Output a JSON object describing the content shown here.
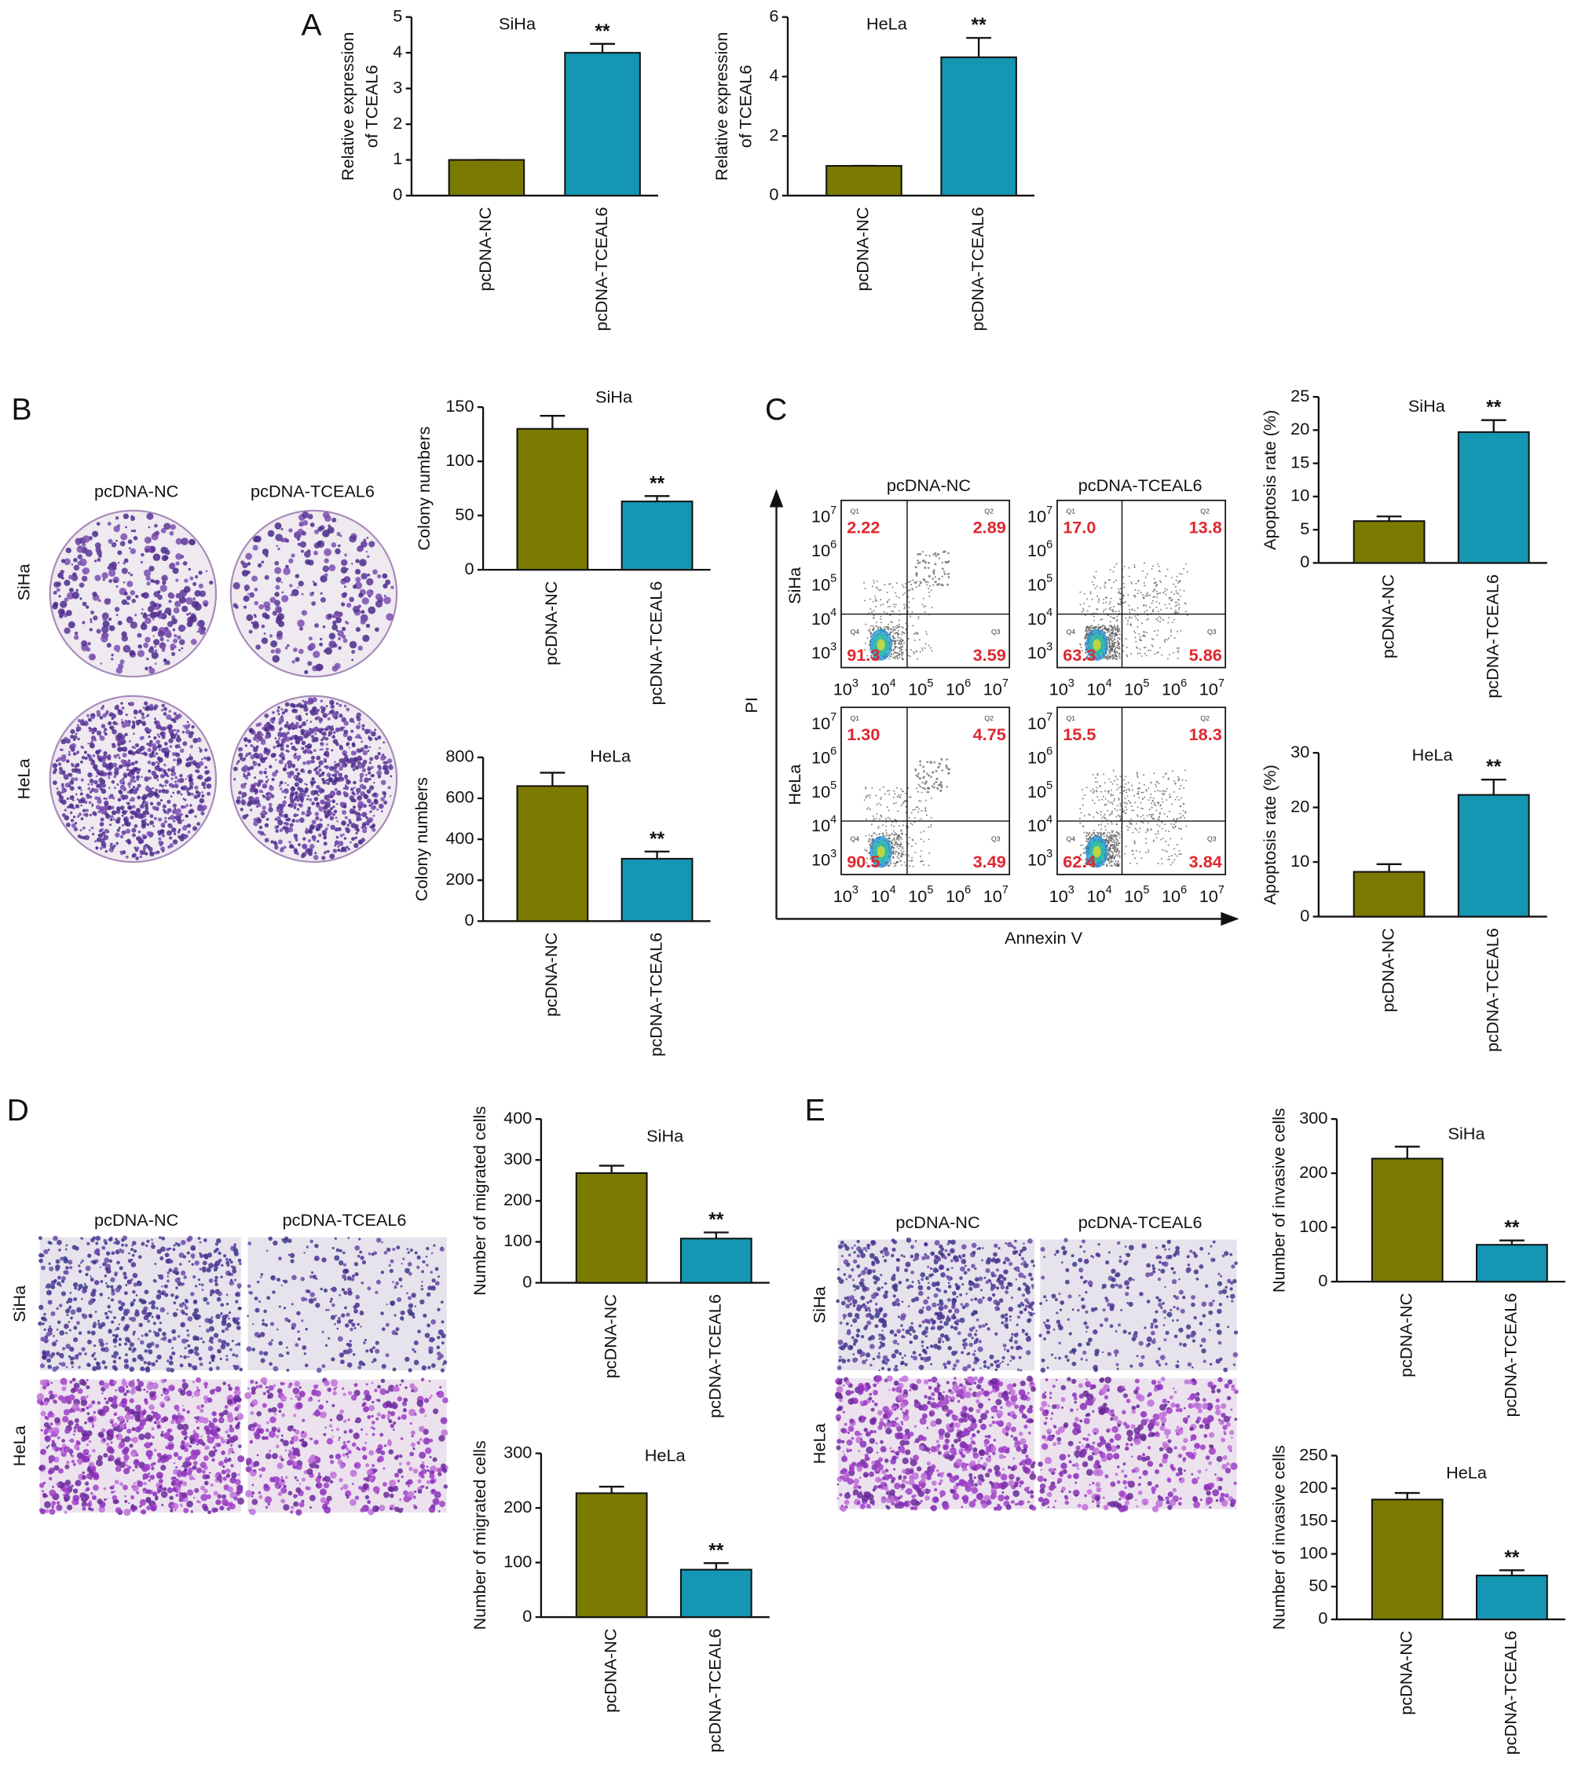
{
  "chart_data": [
    {
      "type": "bar",
      "title": "SiHa",
      "ylabel": [
        "Relative expression",
        "of TCEAL6"
      ],
      "categories": [
        "pcDNA-NC",
        "pcDNA-TCEAL6"
      ],
      "values": [
        1,
        4.0
      ],
      "errors": [
        0,
        0.25
      ],
      "colors": [
        "#7b7a00",
        "#1596b2"
      ],
      "annotation": "**",
      "ylim": [
        0,
        5
      ],
      "yticks": [
        0,
        1,
        2,
        3,
        4,
        5
      ]
    },
    {
      "type": "bar",
      "title": "HeLa",
      "ylabel": [
        "Relative expression",
        "of TCEAL6"
      ],
      "categories": [
        "pcDNA-NC",
        "pcDNA-TCEAL6"
      ],
      "values": [
        1,
        4.65
      ],
      "errors": [
        0,
        0.65
      ],
      "colors": [
        "#7b7a00",
        "#1596b2"
      ],
      "annotation": "**",
      "ylim": [
        0,
        6
      ],
      "yticks": [
        0,
        2,
        4,
        6
      ]
    },
    {
      "type": "bar",
      "title": "SiHa",
      "ylabel": [
        "Colony numbers"
      ],
      "categories": [
        "pcDNA-NC",
        "pcDNA-TCEAL6"
      ],
      "values": [
        130,
        63
      ],
      "errors": [
        12,
        5
      ],
      "colors": [
        "#7b7a00",
        "#1596b2"
      ],
      "annotation": "**",
      "ylim": [
        0,
        150
      ],
      "yticks": [
        0,
        50,
        100,
        150
      ]
    },
    {
      "type": "bar",
      "title": "HeLa",
      "ylabel": [
        "Colony numbers"
      ],
      "categories": [
        "pcDNA-NC",
        "pcDNA-TCEAL6"
      ],
      "values": [
        660,
        305
      ],
      "errors": [
        65,
        35
      ],
      "colors": [
        "#7b7a00",
        "#1596b2"
      ],
      "annotation": "**",
      "ylim": [
        0,
        800
      ],
      "yticks": [
        0,
        200,
        400,
        600,
        800
      ]
    },
    {
      "type": "bar",
      "title": "SiHa",
      "ylabel": [
        "Apoptosis rate (%)"
      ],
      "categories": [
        "pcDNA-NC",
        "pcDNA-TCEAL6"
      ],
      "values": [
        6.3,
        19.7
      ],
      "errors": [
        0.7,
        1.8
      ],
      "colors": [
        "#7b7a00",
        "#1596b2"
      ],
      "annotation": "**",
      "ylim": [
        0,
        25
      ],
      "yticks": [
        0,
        5,
        10,
        15,
        20,
        25
      ]
    },
    {
      "type": "bar",
      "title": "HeLa",
      "ylabel": [
        "Apoptosis rate (%)"
      ],
      "categories": [
        "pcDNA-NC",
        "pcDNA-TCEAL6"
      ],
      "values": [
        8.2,
        22.3
      ],
      "errors": [
        1.4,
        2.8
      ],
      "colors": [
        "#7b7a00",
        "#1596b2"
      ],
      "annotation": "**",
      "ylim": [
        0,
        30
      ],
      "yticks": [
        0,
        10,
        20,
        30
      ]
    },
    {
      "type": "bar",
      "title": "SiHa",
      "ylabel": [
        "Number of migrated cells"
      ],
      "categories": [
        "pcDNA-NC",
        "pcDNA-TCEAL6"
      ],
      "values": [
        268,
        108
      ],
      "errors": [
        18,
        15
      ],
      "colors": [
        "#7b7a00",
        "#1596b2"
      ],
      "annotation": "**",
      "ylim": [
        0,
        400
      ],
      "yticks": [
        0,
        100,
        200,
        300,
        400
      ]
    },
    {
      "type": "bar",
      "title": "HeLa",
      "ylabel": [
        "Number of migrated cells"
      ],
      "categories": [
        "pcDNA-NC",
        "pcDNA-TCEAL6"
      ],
      "values": [
        227,
        87
      ],
      "errors": [
        12,
        12
      ],
      "colors": [
        "#7b7a00",
        "#1596b2"
      ],
      "annotation": "**",
      "ylim": [
        0,
        300
      ],
      "yticks": [
        0,
        100,
        200,
        300
      ]
    },
    {
      "type": "bar",
      "title": "SiHa",
      "ylabel": [
        "Number of invasive cells"
      ],
      "categories": [
        "pcDNA-NC",
        "pcDNA-TCEAL6"
      ],
      "values": [
        227,
        68
      ],
      "errors": [
        22,
        8
      ],
      "colors": [
        "#7b7a00",
        "#1596b2"
      ],
      "annotation": "**",
      "ylim": [
        0,
        300
      ],
      "yticks": [
        0,
        100,
        200,
        300
      ]
    },
    {
      "type": "bar",
      "title": "HeLa",
      "ylabel": [
        "Number of invasive cells"
      ],
      "categories": [
        "pcDNA-NC",
        "pcDNA-TCEAL6"
      ],
      "values": [
        183,
        67
      ],
      "errors": [
        10,
        8
      ],
      "colors": [
        "#7b7a00",
        "#1596b2"
      ],
      "annotation": "**",
      "ylim": [
        0,
        250
      ],
      "yticks": [
        0,
        50,
        100,
        150,
        200,
        250
      ]
    }
  ],
  "panel_labels": [
    "A",
    "B",
    "C",
    "D",
    "E"
  ],
  "colony": {
    "columns": [
      "pcDNA-NC",
      "pcDNA-TCEAL6"
    ],
    "rows": [
      "SiHa",
      "HeLa"
    ]
  },
  "flow": {
    "columns": [
      "pcDNA-NC",
      "pcDNA-TCEAL6"
    ],
    "rows": [
      "SiHa",
      "HeLa"
    ],
    "xlabel": "Annexin V",
    "ylabel": "PI",
    "tick_base": "10",
    "tick_exponents": [
      3,
      4,
      5,
      6,
      7
    ],
    "quadrant_names": [
      "Q1",
      "Q2",
      "Q3",
      "Q4"
    ],
    "quadrants": [
      [
        [
          "2.22",
          "2.89",
          "3.59",
          "91.3"
        ],
        [
          "17.0",
          "13.8",
          "5.86",
          "63.3"
        ]
      ],
      [
        [
          "1.30",
          "4.75",
          "3.49",
          "90.5"
        ],
        [
          "15.5",
          "18.3",
          "3.84",
          "62.4"
        ]
      ]
    ]
  },
  "migration": {
    "columns": [
      "pcDNA-NC",
      "pcDNA-TCEAL6"
    ],
    "rows": [
      "SiHa",
      "HeLa"
    ]
  },
  "invasion": {
    "columns": [
      "pcDNA-NC",
      "pcDNA-TCEAL6"
    ],
    "rows": [
      "SiHa",
      "HeLa"
    ]
  }
}
